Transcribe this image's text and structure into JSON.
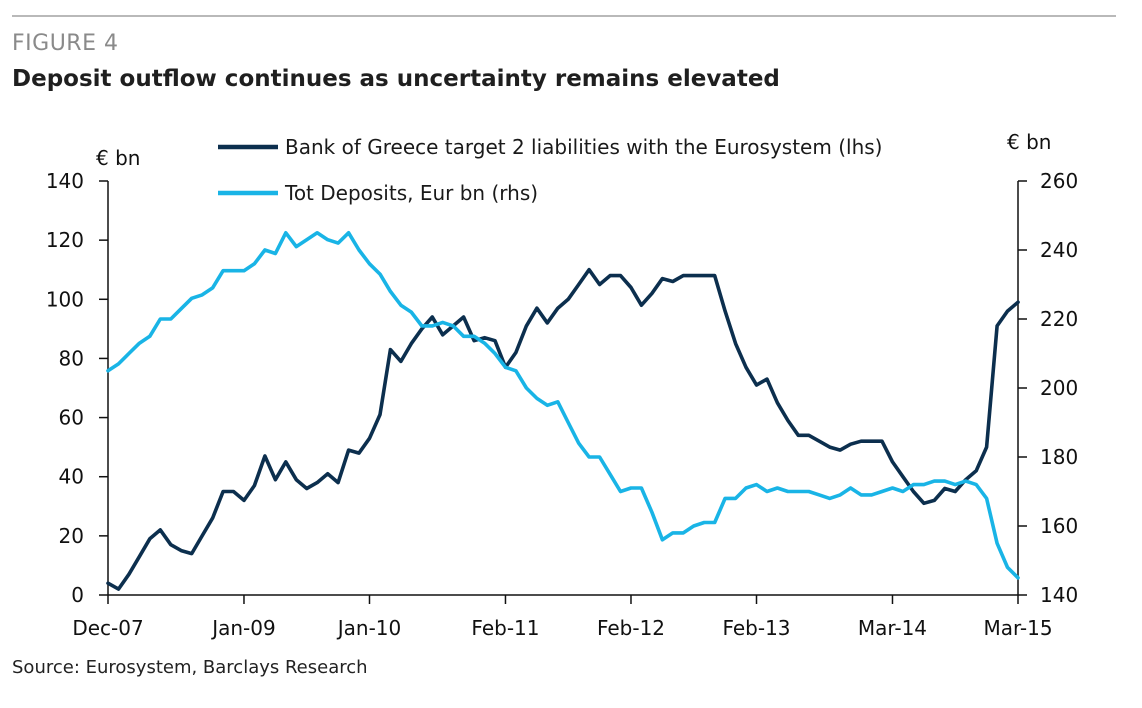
{
  "figure": {
    "label": "FIGURE 4",
    "title": "Deposit outflow continues as uncertainty remains elevated",
    "source": "Source: Eurosystem, Barclays Research"
  },
  "colors": {
    "series1": "#0c2f4e",
    "series2": "#19b4e6",
    "axis": "#111111"
  },
  "chart_data": {
    "type": "line",
    "title": "Deposit outflow continues as uncertainty remains elevated",
    "xlabel": "",
    "ylabel_left": "€ bn",
    "ylabel_right": "€ bn",
    "x_range": [
      0,
      87
    ],
    "x_ticks": [
      {
        "pos": 0,
        "label": "Dec-07"
      },
      {
        "pos": 13,
        "label": "Jan-09"
      },
      {
        "pos": 25,
        "label": "Jan-10"
      },
      {
        "pos": 38,
        "label": "Feb-11"
      },
      {
        "pos": 50,
        "label": "Feb-12"
      },
      {
        "pos": 62,
        "label": "Feb-13"
      },
      {
        "pos": 75,
        "label": "Mar-14"
      },
      {
        "pos": 87,
        "label": "Mar-15"
      }
    ],
    "ylim_left": [
      0,
      140
    ],
    "yticks_left": [
      0,
      20,
      40,
      60,
      80,
      100,
      120,
      140
    ],
    "ylim_right": [
      140,
      260
    ],
    "yticks_right": [
      140,
      160,
      180,
      200,
      220,
      240,
      260
    ],
    "legend": [
      "Bank of Greece target 2 liabilities with the Eurosystem (lhs)",
      "Tot Deposits, Eur bn (rhs)"
    ],
    "series": [
      {
        "name": "Bank of Greece target 2 liabilities with the Eurosystem (lhs)",
        "axis": "left",
        "values": [
          4,
          2,
          7,
          13,
          19,
          22,
          17,
          15,
          14,
          20,
          26,
          35,
          35,
          32,
          37,
          47,
          39,
          45,
          39,
          36,
          38,
          41,
          38,
          49,
          48,
          53,
          61,
          83,
          79,
          85,
          90,
          94,
          88,
          91,
          94,
          86,
          87,
          86,
          77,
          82,
          91,
          97,
          92,
          97,
          100,
          105,
          110,
          105,
          108,
          108,
          104,
          98,
          102,
          107,
          106,
          108,
          108,
          108,
          108,
          96,
          85,
          77,
          71,
          73,
          65,
          59,
          54,
          54,
          52,
          50,
          49,
          51,
          52,
          52,
          52,
          45,
          40,
          35,
          31,
          32,
          36,
          35,
          39,
          42,
          50,
          91,
          96,
          99
        ]
      },
      {
        "name": "Tot Deposits, Eur bn (rhs)",
        "axis": "right",
        "values": [
          205,
          207,
          210,
          213,
          215,
          220,
          220,
          223,
          226,
          227,
          229,
          234,
          234,
          234,
          236,
          240,
          239,
          245,
          241,
          243,
          245,
          243,
          242,
          245,
          240,
          236,
          233,
          228,
          224,
          222,
          218,
          218,
          219,
          218,
          215,
          215,
          213,
          210,
          206,
          205,
          200,
          197,
          195,
          196,
          190,
          184,
          180,
          180,
          175,
          170,
          171,
          171,
          164,
          156,
          158,
          158,
          160,
          161,
          161,
          168,
          168,
          171,
          172,
          170,
          171,
          170,
          170,
          170,
          169,
          168,
          169,
          171,
          169,
          169,
          170,
          171,
          170,
          172,
          172,
          173,
          173,
          172,
          173,
          172,
          168,
          155,
          148,
          145
        ]
      }
    ]
  }
}
